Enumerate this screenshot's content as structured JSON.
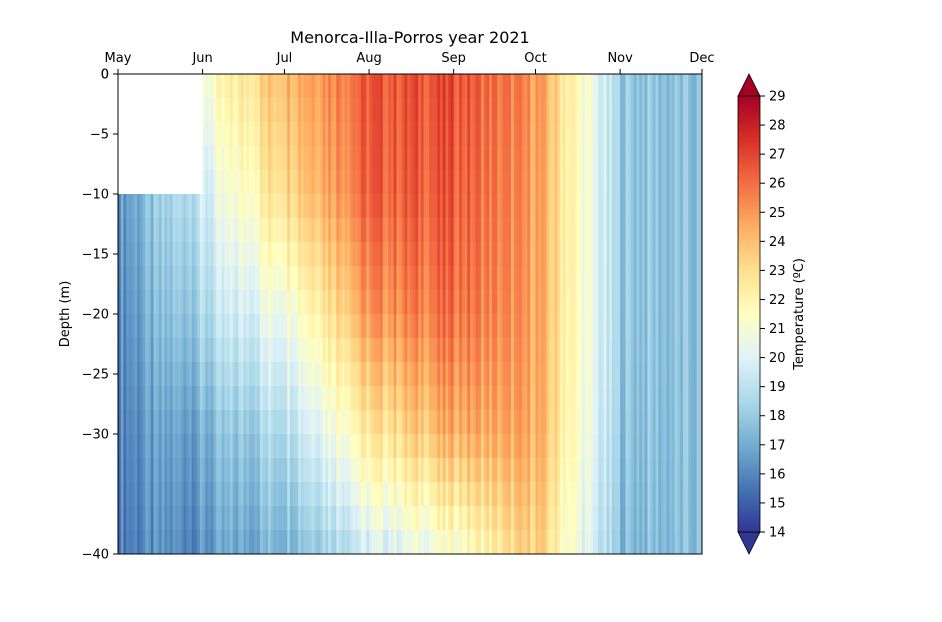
{
  "chart_data": {
    "type": "heatmap",
    "title": "Menorca-Illa-Porros year 2021",
    "ylabel": "Depth (m)",
    "xlabel": "",
    "x_ticks": [
      "May",
      "Jun",
      "Jul",
      "Aug",
      "Sep",
      "Oct",
      "Nov",
      "Dec"
    ],
    "y_ticks": [
      "0",
      "0",
      "−5",
      "−10",
      "−15",
      "−20",
      "−25",
      "−30",
      "−40"
    ],
    "y_tick_values": [
      0,
      0,
      -5,
      -10,
      -15,
      -20,
      -25,
      -30,
      -40
    ],
    "ylim": [
      -40,
      0
    ],
    "colorbar": {
      "label": "Temperature (ºC)",
      "min": 14,
      "max": 29,
      "ticks": [
        "14",
        "15",
        "16",
        "17",
        "18",
        "19",
        "20",
        "21",
        "22",
        "23",
        "24",
        "25",
        "26",
        "27",
        "28",
        "29"
      ],
      "extend": "both",
      "colormap": "RdYlBu_r",
      "colors": [
        "#313695",
        "#4575b4",
        "#74add1",
        "#abd9e9",
        "#e0f3f8",
        "#ffffbf",
        "#fee090",
        "#fdae61",
        "#f46d43",
        "#d73027",
        "#a50026"
      ]
    },
    "no_data_region": {
      "from_month": "May",
      "to_month": "Jun",
      "depth_top": 0,
      "depth_bottom": -10
    },
    "profiles": [
      {
        "month": "May",
        "temps_by_depth": {
          "-10": 16.5,
          "-20": 16.2,
          "-30": 16.0,
          "-40": 15.8
        }
      },
      {
        "month": "Jun",
        "temps_by_depth": {
          "0": 21.0,
          "-10": 19.5,
          "-20": 18.5,
          "-30": 17.0,
          "-40": 16.2
        }
      },
      {
        "month": "Jul",
        "temps_by_depth": {
          "0": 24.5,
          "-10": 23.5,
          "-20": 21.0,
          "-30": 19.0,
          "-40": 17.5
        }
      },
      {
        "month": "Aug",
        "temps_by_depth": {
          "0": 26.5,
          "-10": 26.3,
          "-20": 25.0,
          "-30": 22.5,
          "-40": 19.5
        }
      },
      {
        "month": "Sep",
        "temps_by_depth": {
          "0": 26.8,
          "-10": 26.5,
          "-20": 26.0,
          "-30": 24.5,
          "-40": 21.0
        }
      },
      {
        "month": "Oct",
        "temps_by_depth": {
          "0": 25.0,
          "-10": 24.8,
          "-20": 24.7,
          "-30": 24.5,
          "-40": 23.5
        }
      },
      {
        "month": "Nov",
        "temps_by_depth": {
          "0": 18.0,
          "-10": 18.0,
          "-20": 18.0,
          "-30": 17.8,
          "-40": 17.5
        }
      },
      {
        "month": "Dec",
        "temps_by_depth": {
          "0": 17.5,
          "-10": 17.5,
          "-20": 17.5,
          "-30": 17.5,
          "-40": 17.5
        }
      }
    ]
  }
}
